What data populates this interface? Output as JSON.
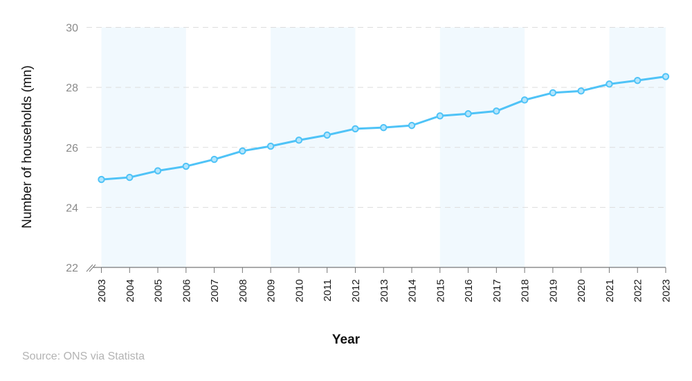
{
  "chart_data": {
    "type": "line",
    "title": "",
    "xlabel": "Year",
    "ylabel": "Number of households (mn)",
    "ylim": [
      22,
      30
    ],
    "yticks": [
      22,
      24,
      26,
      28,
      30
    ],
    "grid": true,
    "legend": null,
    "x": [
      "2003",
      "2004",
      "2005",
      "2006",
      "2007",
      "2008",
      "2009",
      "2010",
      "2011",
      "2012",
      "2013",
      "2014",
      "2015",
      "2016",
      "2017",
      "2018",
      "2019",
      "2020",
      "2021",
      "2022",
      "2023"
    ],
    "series": [
      {
        "name": "Number of households (mn)",
        "color": "#4fc3f7",
        "values": [
          24.93,
          25.0,
          25.22,
          25.37,
          25.6,
          25.88,
          26.04,
          26.24,
          26.41,
          26.62,
          26.66,
          26.73,
          27.05,
          27.12,
          27.21,
          27.58,
          27.82,
          27.88,
          28.11,
          28.23,
          28.36
        ]
      }
    ],
    "shaded_bands": [
      [
        "2003",
        "2006"
      ],
      [
        "2009",
        "2012"
      ],
      [
        "2015",
        "2018"
      ],
      [
        "2021",
        "2023"
      ]
    ],
    "axis_break": true
  },
  "labels": {
    "ylabel": "Number of households (mn)",
    "xlabel": "Year",
    "source": "Source: ONS via Statista"
  },
  "colors": {
    "line": "#4fc3f7",
    "marker_fill": "#b3e5fc",
    "band": "#f1f9fe",
    "grid": "#dddddd",
    "axis": "#777777"
  }
}
